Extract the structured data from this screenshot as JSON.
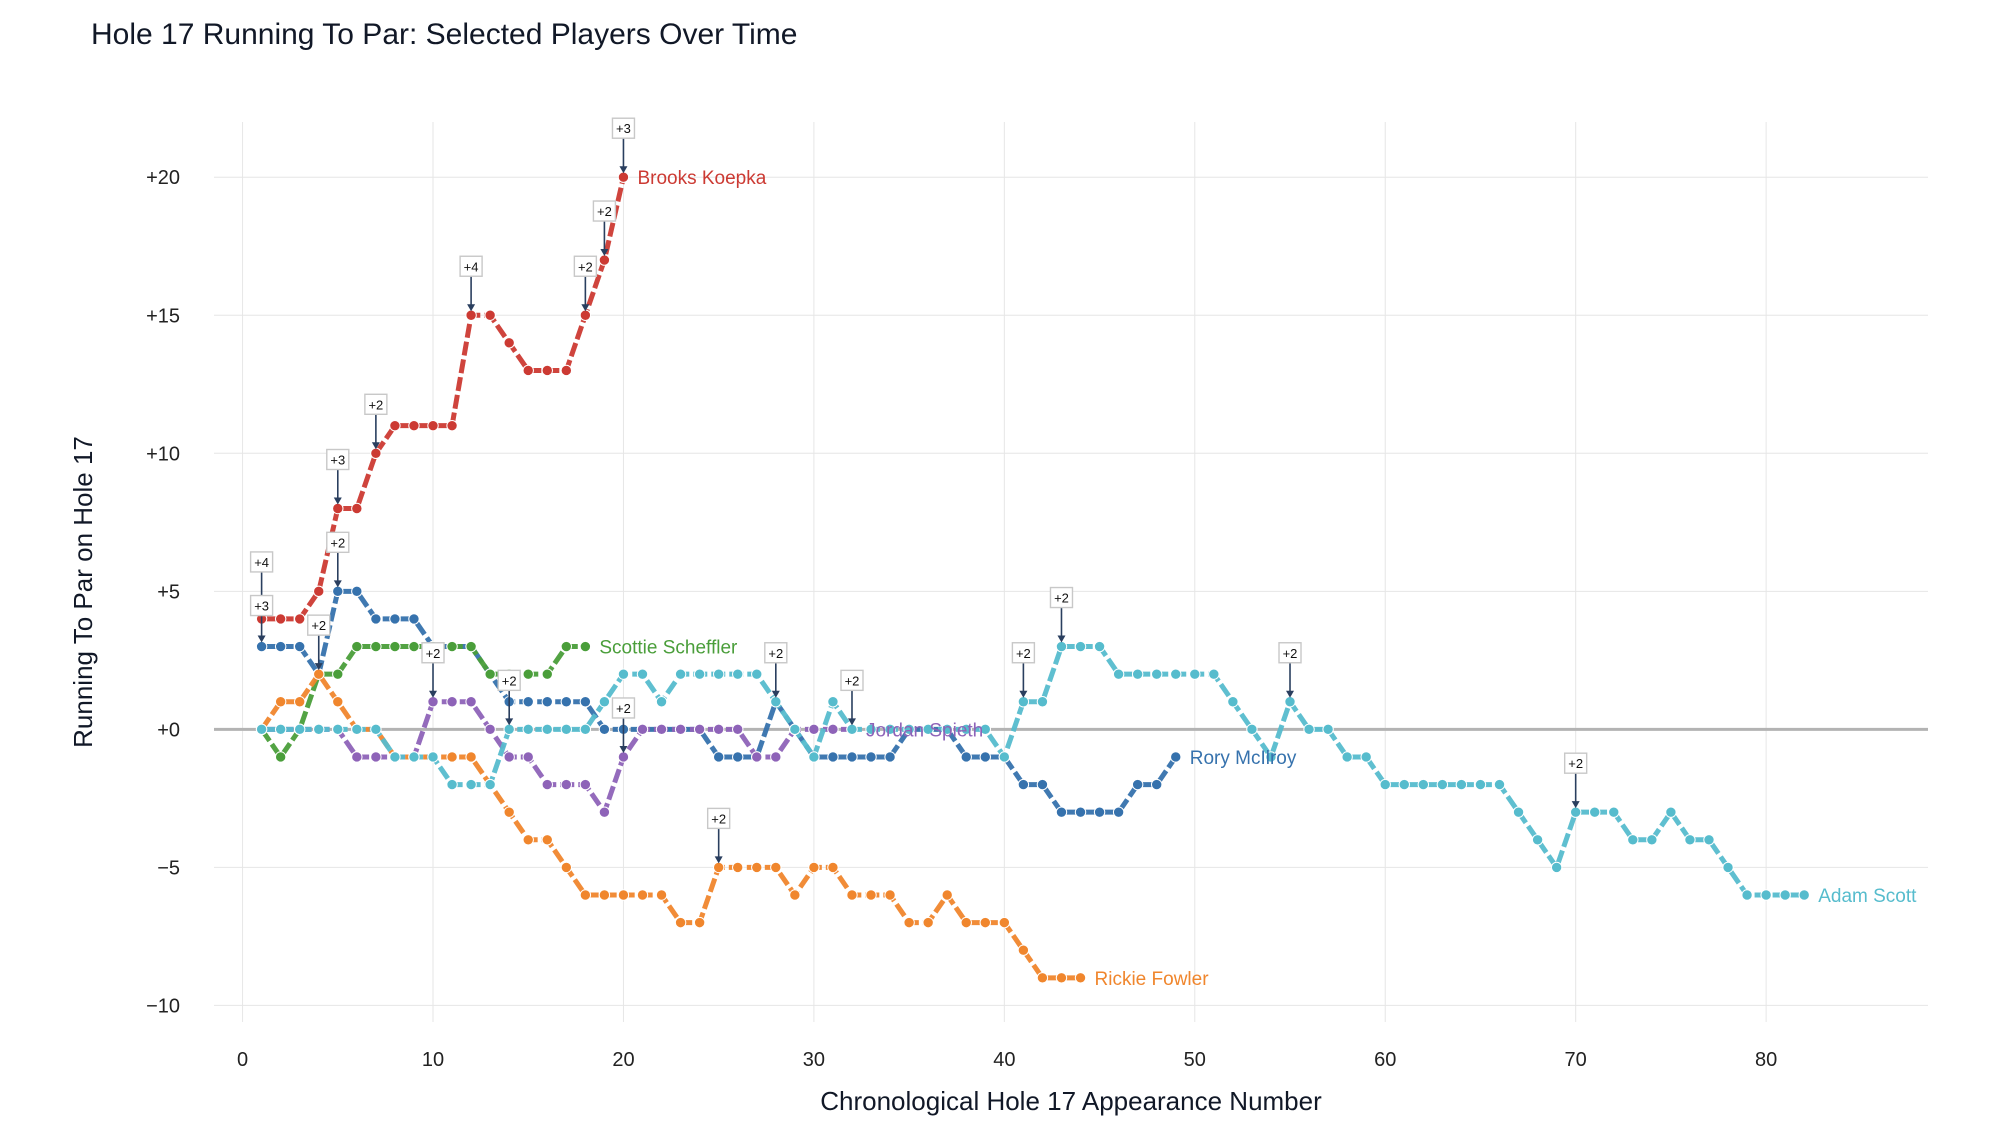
{
  "chart_data": {
    "type": "line",
    "title": "Hole 17 Running To Par: Selected Players Over Time",
    "xlabel": "Chronological Hole 17 Appearance Number",
    "ylabel": "Running To Par on Hole 17",
    "xlim": [
      -1.5,
      88.5
    ],
    "ylim": [
      -10.6,
      22
    ],
    "x_ticks": [
      0,
      10,
      20,
      30,
      40,
      50,
      60,
      70,
      80
    ],
    "x_tick_labels": [
      "0",
      "10",
      "20",
      "30",
      "40",
      "50",
      "60",
      "70",
      "80"
    ],
    "y_ticks": [
      20,
      15,
      10,
      5,
      0,
      -5,
      -10
    ],
    "y_tick_labels": [
      "+20",
      "+15",
      "+10",
      "+5",
      "+0",
      "−5",
      "−10"
    ],
    "grid": true,
    "zero_line": true,
    "legend": "end-of-line labels",
    "series": [
      {
        "name": "Brooks Koepka",
        "color": "#cc3a33",
        "values": [
          4,
          4,
          4,
          5,
          8,
          8,
          10,
          11,
          11,
          11,
          11,
          15,
          15,
          14,
          13,
          13,
          13,
          15,
          17,
          20
        ],
        "annotations": [
          {
            "x": 1,
            "text": "+4"
          },
          {
            "x": 5,
            "text": "+3"
          },
          {
            "x": 7,
            "text": "+2"
          },
          {
            "x": 12,
            "text": "+4"
          },
          {
            "x": 18,
            "text": "+2"
          },
          {
            "x": 19,
            "text": "+2"
          },
          {
            "x": 20,
            "text": "+3"
          }
        ]
      },
      {
        "name": "Rory McIlroy",
        "color": "#3672ad",
        "values": [
          3,
          3,
          3,
          2,
          5,
          5,
          4,
          4,
          4,
          3,
          3,
          3,
          2,
          1,
          1,
          1,
          1,
          1,
          0,
          0,
          0,
          0,
          0,
          0,
          -1,
          -1,
          -1,
          1,
          0,
          -1,
          -1,
          -1,
          -1,
          -1,
          0,
          0,
          0,
          -1,
          -1,
          -1,
          -2,
          -2,
          -3,
          -3,
          -3,
          -3,
          -2,
          -2,
          -1
        ],
        "annotations": [
          {
            "x": 1,
            "text": "+3"
          },
          {
            "x": 5,
            "text": "+2"
          },
          {
            "x": 28,
            "text": "+2"
          }
        ]
      },
      {
        "name": "Scottie Scheffler",
        "color": "#4a9e3a",
        "values": [
          0,
          -1,
          0,
          2,
          2,
          3,
          3,
          3,
          3,
          3,
          3,
          3,
          2,
          2,
          2,
          2,
          3,
          3
        ],
        "annotations": [
          {
            "x": 4,
            "text": "+2"
          }
        ]
      },
      {
        "name": "Jordan Spieth",
        "color": "#8e63b8",
        "values": [
          0,
          0,
          0,
          0,
          0,
          -1,
          -1,
          -1,
          -1,
          1,
          1,
          1,
          0,
          -1,
          -1,
          -2,
          -2,
          -2,
          -3,
          -1,
          0,
          0,
          0,
          0,
          0,
          0,
          -1,
          -1,
          0,
          0,
          0,
          0
        ],
        "annotations": [
          {
            "x": 10,
            "text": "+2"
          },
          {
            "x": 20,
            "text": "+2"
          }
        ]
      },
      {
        "name": "Rickie Fowler",
        "color": "#f0862d",
        "values": [
          0,
          1,
          1,
          2,
          1,
          0,
          0,
          -1,
          -1,
          -1,
          -1,
          -1,
          -2,
          -3,
          -4,
          -4,
          -5,
          -6,
          -6,
          -6,
          -6,
          -6,
          -7,
          -7,
          -5,
          -5,
          -5,
          -5,
          -6,
          -5,
          -5,
          -6,
          -6,
          -6,
          -7,
          -7,
          -6,
          -7,
          -7,
          -7,
          -8,
          -9,
          -9,
          -9
        ],
        "annotations": [
          {
            "x": 25,
            "text": "+2"
          }
        ]
      },
      {
        "name": "Adam Scott",
        "color": "#56bccd",
        "values": [
          0,
          0,
          0,
          0,
          0,
          0,
          0,
          -1,
          -1,
          -1,
          -2,
          -2,
          -2,
          0,
          0,
          0,
          0,
          0,
          1,
          2,
          2,
          1,
          2,
          2,
          2,
          2,
          2,
          1,
          0,
          -1,
          1,
          0,
          0,
          0,
          0,
          0,
          0,
          0,
          0,
          -1,
          1,
          1,
          3,
          3,
          3,
          2,
          2,
          2,
          2,
          2,
          2,
          1,
          0,
          -1,
          1,
          0,
          0,
          -1,
          -1,
          -2,
          -2,
          -2,
          -2,
          -2,
          -2,
          -2,
          -3,
          -4,
          -5,
          -3,
          -3,
          -3,
          -4,
          -4,
          -3,
          -4,
          -4,
          -5,
          -6,
          -6,
          -6,
          -6
        ],
        "annotations": [
          {
            "x": 14,
            "text": "+2"
          },
          {
            "x": 32,
            "text": "+2"
          },
          {
            "x": 41,
            "text": "+2"
          },
          {
            "x": 43,
            "text": "+2"
          },
          {
            "x": 55,
            "text": "+2"
          },
          {
            "x": 70,
            "text": "+2"
          }
        ]
      }
    ]
  }
}
